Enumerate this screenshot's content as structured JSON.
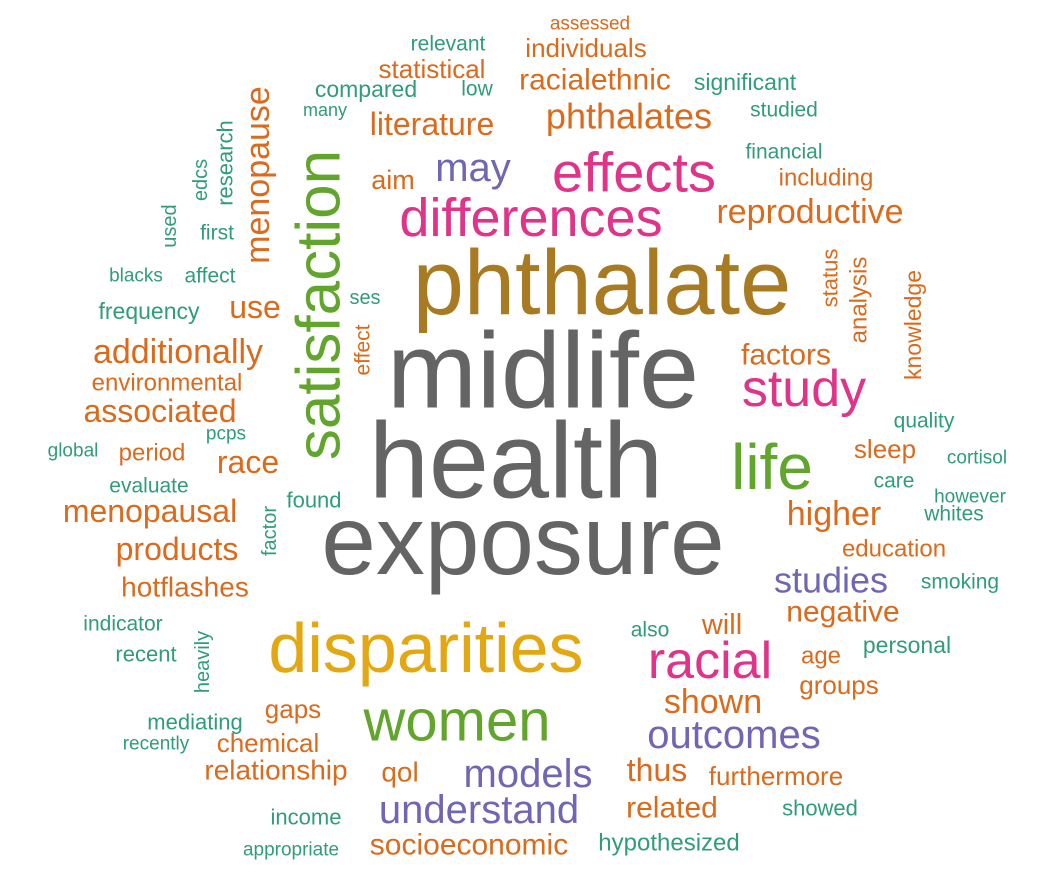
{
  "colors": {
    "green": "#2f9d77",
    "orange": "#db6a1c",
    "pink": "#e0338a",
    "purple": "#7066b3",
    "gold": "#a87b22",
    "gray": "#646464",
    "leaf": "#62a52c",
    "amber": "#e3a712"
  },
  "words": [
    {
      "text": "assessed",
      "color": "orange"
    },
    {
      "text": "relevant",
      "color": "green"
    },
    {
      "text": "individuals",
      "color": "orange"
    },
    {
      "text": "statistical",
      "color": "orange"
    },
    {
      "text": "compared",
      "color": "green"
    },
    {
      "text": "low",
      "color": "green"
    },
    {
      "text": "racialethnic",
      "color": "orange"
    },
    {
      "text": "significant",
      "color": "green"
    },
    {
      "text": "many",
      "color": "green"
    },
    {
      "text": "studied",
      "color": "green"
    },
    {
      "text": "phthalates",
      "color": "orange"
    },
    {
      "text": "literature",
      "color": "orange"
    },
    {
      "text": "menopause",
      "color": "orange"
    },
    {
      "text": "research",
      "color": "green"
    },
    {
      "text": "financial",
      "color": "green"
    },
    {
      "text": "edcs",
      "color": "green"
    },
    {
      "text": "aim",
      "color": "orange"
    },
    {
      "text": "may",
      "color": "purple"
    },
    {
      "text": "effects",
      "color": "pink"
    },
    {
      "text": "including",
      "color": "orange"
    },
    {
      "text": "satisfaction",
      "color": "leaf"
    },
    {
      "text": "used",
      "color": "green"
    },
    {
      "text": "differences",
      "color": "pink"
    },
    {
      "text": "reproductive",
      "color": "orange"
    },
    {
      "text": "first",
      "color": "green"
    },
    {
      "text": "phthalate",
      "color": "gold"
    },
    {
      "text": "status",
      "color": "orange"
    },
    {
      "text": "blacks",
      "color": "green"
    },
    {
      "text": "affect",
      "color": "green"
    },
    {
      "text": "knowledge",
      "color": "orange"
    },
    {
      "text": "analysis",
      "color": "orange"
    },
    {
      "text": "use",
      "color": "orange"
    },
    {
      "text": "ses",
      "color": "green"
    },
    {
      "text": "frequency",
      "color": "green"
    },
    {
      "text": "effect",
      "color": "orange"
    },
    {
      "text": "additionally",
      "color": "orange"
    },
    {
      "text": "factors",
      "color": "orange"
    },
    {
      "text": "midlife",
      "color": "gray"
    },
    {
      "text": "study",
      "color": "pink"
    },
    {
      "text": "environmental",
      "color": "orange"
    },
    {
      "text": "associated",
      "color": "orange"
    },
    {
      "text": "quality",
      "color": "green"
    },
    {
      "text": "pcps",
      "color": "green"
    },
    {
      "text": "global",
      "color": "green"
    },
    {
      "text": "period",
      "color": "orange"
    },
    {
      "text": "health",
      "color": "gray"
    },
    {
      "text": "sleep",
      "color": "orange"
    },
    {
      "text": "race",
      "color": "orange"
    },
    {
      "text": "life",
      "color": "leaf"
    },
    {
      "text": "cortisol",
      "color": "green"
    },
    {
      "text": "evaluate",
      "color": "green"
    },
    {
      "text": "care",
      "color": "green"
    },
    {
      "text": "found",
      "color": "green"
    },
    {
      "text": "however",
      "color": "green"
    },
    {
      "text": "menopausal",
      "color": "orange"
    },
    {
      "text": "higher",
      "color": "orange"
    },
    {
      "text": "whites",
      "color": "green"
    },
    {
      "text": "factor",
      "color": "green"
    },
    {
      "text": "exposure",
      "color": "gray"
    },
    {
      "text": "education",
      "color": "orange"
    },
    {
      "text": "products",
      "color": "orange"
    },
    {
      "text": "studies",
      "color": "purple"
    },
    {
      "text": "smoking",
      "color": "green"
    },
    {
      "text": "hotflashes",
      "color": "orange"
    },
    {
      "text": "negative",
      "color": "orange"
    },
    {
      "text": "indicator",
      "color": "green"
    },
    {
      "text": "also",
      "color": "green"
    },
    {
      "text": "will",
      "color": "orange"
    },
    {
      "text": "disparities",
      "color": "amber"
    },
    {
      "text": "heavily",
      "color": "green"
    },
    {
      "text": "personal",
      "color": "green"
    },
    {
      "text": "recent",
      "color": "green"
    },
    {
      "text": "racial",
      "color": "pink"
    },
    {
      "text": "age",
      "color": "orange"
    },
    {
      "text": "groups",
      "color": "orange"
    },
    {
      "text": "shown",
      "color": "orange"
    },
    {
      "text": "mediating",
      "color": "green"
    },
    {
      "text": "gaps",
      "color": "orange"
    },
    {
      "text": "women",
      "color": "leaf"
    },
    {
      "text": "recently",
      "color": "green"
    },
    {
      "text": "chemical",
      "color": "orange"
    },
    {
      "text": "outcomes",
      "color": "purple"
    },
    {
      "text": "relationship",
      "color": "orange"
    },
    {
      "text": "qol",
      "color": "orange"
    },
    {
      "text": "models",
      "color": "purple"
    },
    {
      "text": "thus",
      "color": "orange"
    },
    {
      "text": "furthermore",
      "color": "orange"
    },
    {
      "text": "income",
      "color": "green"
    },
    {
      "text": "understand",
      "color": "purple"
    },
    {
      "text": "related",
      "color": "orange"
    },
    {
      "text": "showed",
      "color": "green"
    },
    {
      "text": "appropriate",
      "color": "green"
    },
    {
      "text": "socioeconomic",
      "color": "orange"
    },
    {
      "text": "hypothesized",
      "color": "green"
    }
  ]
}
